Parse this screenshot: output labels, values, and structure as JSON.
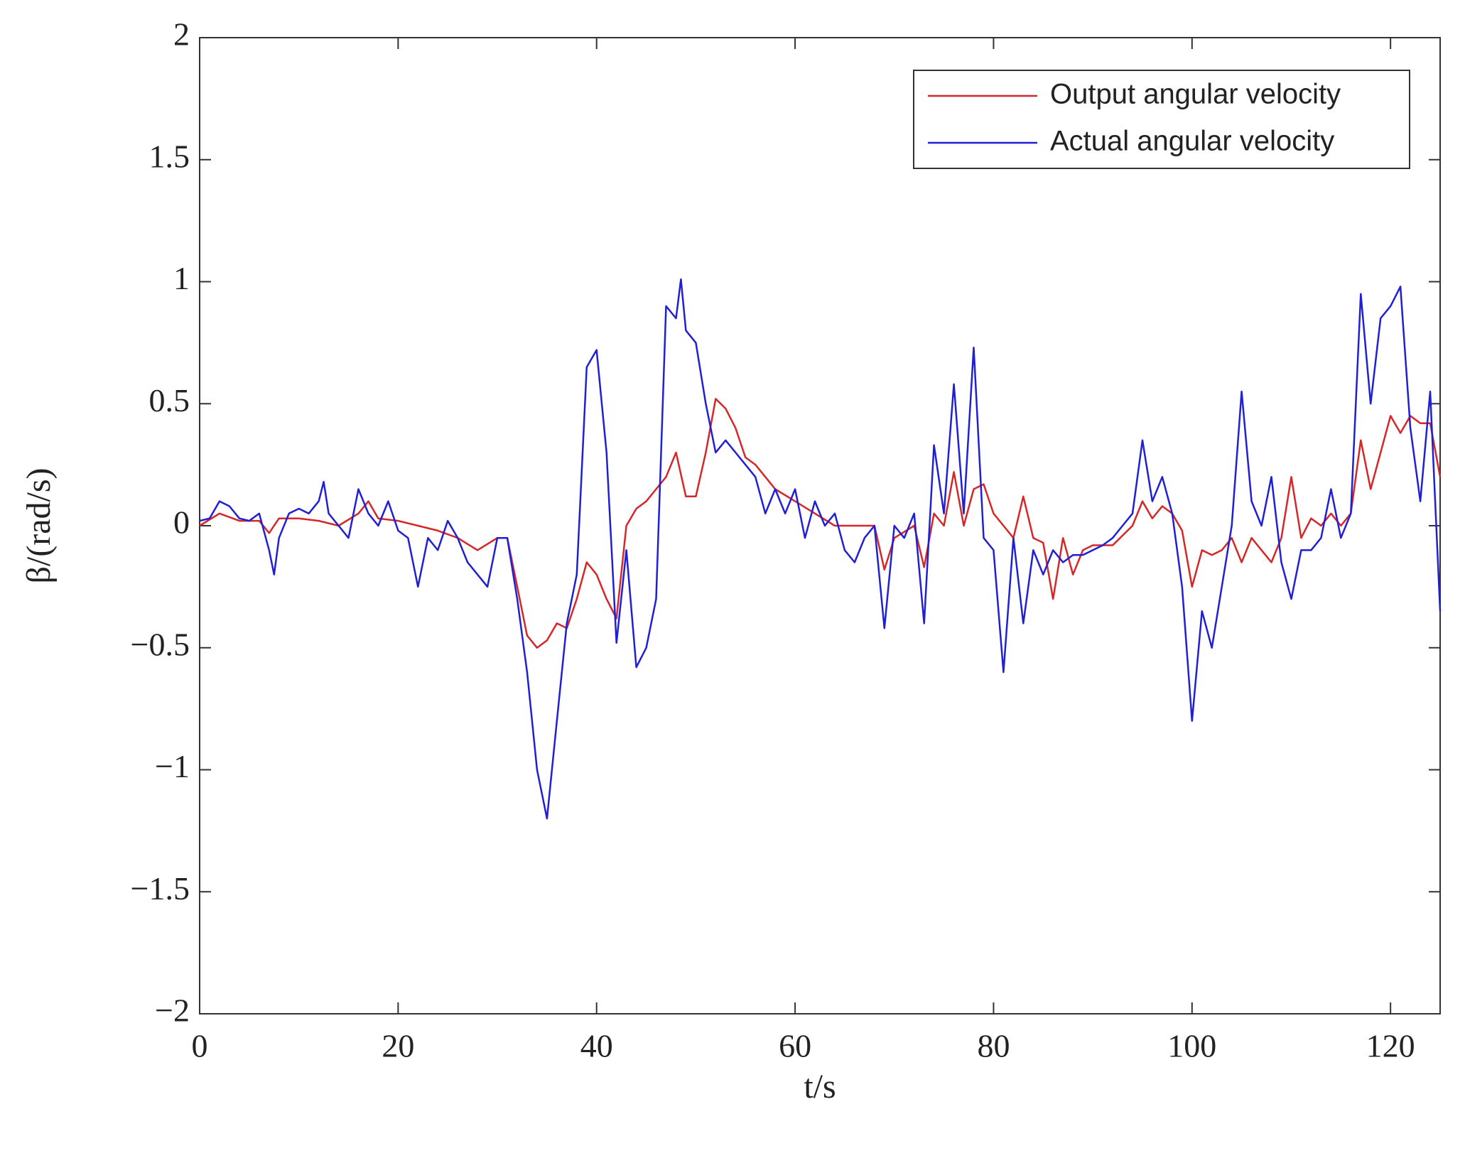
{
  "chart_data": {
    "type": "line",
    "xlabel": "t/s",
    "ylabel": "β/(rad/s)",
    "xlim": [
      0,
      125
    ],
    "ylim": [
      -2,
      2
    ],
    "xticks": [
      0,
      20,
      40,
      60,
      80,
      100,
      120
    ],
    "yticks": [
      {
        "value": -2,
        "label": "−2"
      },
      {
        "value": -1.5,
        "label": "−1.5"
      },
      {
        "value": -1,
        "label": "−1"
      },
      {
        "value": -0.5,
        "label": "−0.5"
      },
      0,
      0.5,
      1,
      1.5,
      2
    ],
    "legend": "upper right",
    "series": [
      {
        "name": "Output angular velocity",
        "color": "#d62728",
        "x": [
          0,
          2,
          4,
          6,
          7,
          8,
          10,
          12,
          14,
          16,
          17,
          18,
          20,
          22,
          24,
          26,
          28,
          30,
          31,
          32,
          33,
          34,
          35,
          36,
          37,
          38,
          39,
          40,
          41,
          42,
          43,
          44,
          45,
          46,
          47,
          48,
          49,
          50,
          51,
          52,
          53,
          54,
          55,
          56,
          57,
          58,
          60,
          62,
          64,
          66,
          68,
          69,
          70,
          72,
          73,
          74,
          75,
          76,
          77,
          78,
          79,
          80,
          81,
          82,
          83,
          84,
          85,
          86,
          87,
          88,
          89,
          90,
          92,
          94,
          95,
          96,
          97,
          98,
          99,
          100,
          101,
          102,
          103,
          104,
          105,
          106,
          107,
          108,
          109,
          110,
          111,
          112,
          113,
          114,
          115,
          116,
          117,
          118,
          119,
          120,
          121,
          122,
          123,
          124,
          125
        ],
        "values": [
          0,
          0.05,
          0.02,
          0.02,
          -0.03,
          0.03,
          0.03,
          0.02,
          0,
          0.05,
          0.1,
          0.03,
          0.02,
          0,
          -0.02,
          -0.05,
          -0.1,
          -0.05,
          -0.05,
          -0.25,
          -0.45,
          -0.5,
          -0.47,
          -0.4,
          -0.42,
          -0.3,
          -0.15,
          -0.2,
          -0.3,
          -0.38,
          0,
          0.07,
          0.1,
          0.15,
          0.2,
          0.3,
          0.12,
          0.12,
          0.3,
          0.52,
          0.48,
          0.4,
          0.28,
          0.25,
          0.2,
          0.15,
          0.1,
          0.05,
          0,
          0,
          0,
          -0.18,
          -0.05,
          0,
          -0.17,
          0.05,
          0,
          0.22,
          0,
          0.15,
          0.17,
          0.05,
          0,
          -0.05,
          0.12,
          -0.05,
          -0.07,
          -0.3,
          -0.05,
          -0.2,
          -0.1,
          -0.08,
          -0.08,
          0,
          0.1,
          0.03,
          0.08,
          0.05,
          -0.02,
          -0.25,
          -0.1,
          -0.12,
          -0.1,
          -0.05,
          -0.15,
          -0.05,
          -0.1,
          -0.15,
          -0.05,
          0.2,
          -0.05,
          0.03,
          0,
          0.05,
          0,
          0.05,
          0.35,
          0.15,
          0.3,
          0.45,
          0.38,
          0.45,
          0.42,
          0.42,
          0.2
        ]
      },
      {
        "name": "Actual angular velocity",
        "color": "#1f1fd6",
        "x": [
          0,
          1,
          2,
          3,
          4,
          5,
          6,
          7,
          7.5,
          8,
          9,
          10,
          11,
          12,
          12.5,
          13,
          14,
          15,
          16,
          17,
          18,
          19,
          20,
          21,
          22,
          23,
          24,
          25,
          26,
          27,
          28,
          29,
          30,
          31,
          32,
          33,
          34,
          35,
          36,
          37,
          38,
          39,
          40,
          41,
          42,
          43,
          44,
          45,
          46,
          47,
          48,
          48.5,
          49,
          50,
          51,
          52,
          53,
          54,
          55,
          56,
          57,
          58,
          59,
          60,
          61,
          62,
          63,
          64,
          65,
          66,
          67,
          68,
          69,
          70,
          71,
          72,
          73,
          74,
          75,
          76,
          77,
          78,
          79,
          80,
          81,
          82,
          83,
          84,
          85,
          86,
          87,
          88,
          89,
          90,
          91,
          92,
          93,
          94,
          95,
          96,
          97,
          98,
          99,
          100,
          101,
          102,
          103,
          104,
          105,
          106,
          107,
          108,
          109,
          110,
          111,
          112,
          113,
          114,
          115,
          116,
          117,
          118,
          119,
          120,
          121,
          122,
          123,
          124,
          125
        ],
        "values": [
          0.02,
          0.03,
          0.1,
          0.08,
          0.03,
          0.02,
          0.05,
          -0.1,
          -0.2,
          -0.05,
          0.05,
          0.07,
          0.05,
          0.1,
          0.18,
          0.05,
          0,
          -0.05,
          0.15,
          0.05,
          0,
          0.1,
          -0.02,
          -0.05,
          -0.25,
          -0.05,
          -0.1,
          0.02,
          -0.05,
          -0.15,
          -0.2,
          -0.25,
          -0.05,
          -0.05,
          -0.3,
          -0.6,
          -1,
          -1.2,
          -0.8,
          -0.4,
          -0.2,
          0.65,
          0.72,
          0.3,
          -0.48,
          -0.1,
          -0.58,
          -0.5,
          -0.3,
          0.9,
          0.85,
          1.01,
          0.8,
          0.75,
          0.5,
          0.3,
          0.35,
          0.3,
          0.25,
          0.2,
          0.05,
          0.15,
          0.05,
          0.15,
          -0.05,
          0.1,
          0,
          0.05,
          -0.1,
          -0.15,
          -0.05,
          0,
          -0.42,
          0,
          -0.05,
          0.05,
          -0.4,
          0.33,
          0.05,
          0.58,
          0.05,
          0.73,
          -0.05,
          -0.1,
          -0.6,
          -0.05,
          -0.4,
          -0.1,
          -0.2,
          -0.1,
          -0.15,
          -0.12,
          -0.12,
          -0.1,
          -0.08,
          -0.05,
          0,
          0.05,
          0.35,
          0.1,
          0.2,
          0.05,
          -0.25,
          -0.8,
          -0.35,
          -0.5,
          -0.25,
          0,
          0.55,
          0.1,
          0,
          0.2,
          -0.15,
          -0.3,
          -0.1,
          -0.1,
          -0.05,
          0.15,
          -0.05,
          0.05,
          0.95,
          0.5,
          0.85,
          0.9,
          0.98,
          0.4,
          0.1,
          0.55,
          -0.35
        ]
      }
    ]
  }
}
